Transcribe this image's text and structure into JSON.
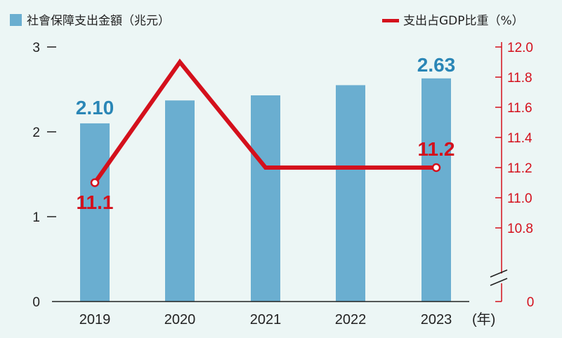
{
  "chart_data": {
    "type": "bar+line",
    "categories": [
      "2019",
      "2020",
      "2021",
      "2022",
      "2023"
    ],
    "x_unit": "(年)",
    "series": [
      {
        "name": "社會保障支出金額（兆元）",
        "type": "bar",
        "axis": "left",
        "color": "#6aaed0",
        "values": [
          2.1,
          2.37,
          2.43,
          2.55,
          2.63
        ],
        "labels": [
          "2.10",
          "",
          "",
          "",
          "2.63"
        ]
      },
      {
        "name": "支出占GDP比重（%）",
        "type": "line",
        "axis": "right",
        "color": "#d4101c",
        "values": [
          11.1,
          11.9,
          11.2,
          11.2,
          11.2
        ],
        "labels": [
          "11.1",
          "",
          "",
          "",
          "11.2"
        ]
      }
    ],
    "left_axis": {
      "ticks": [
        "3",
        "2",
        "1",
        "0"
      ],
      "ylim": [
        0,
        3
      ]
    },
    "right_axis": {
      "ticks": [
        "12.0",
        "11.8",
        "11.6",
        "11.4",
        "11.2",
        "11.0",
        "10.8"
      ],
      "zero_label": "0",
      "ylim": [
        10.8,
        12.0
      ],
      "broken": true
    },
    "legend_position": "top"
  }
}
